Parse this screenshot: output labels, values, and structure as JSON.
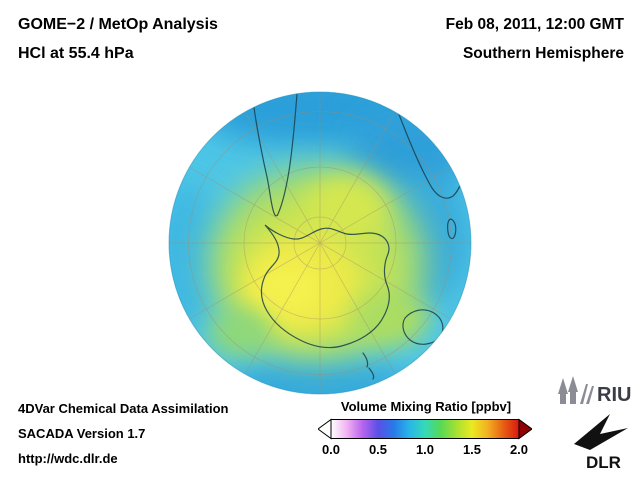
{
  "header": {
    "instrument": "GOME−2 / MetOp Analysis",
    "species_level": "HCl at 55.4 hPa",
    "datetime": "Feb 08, 2011, 12:00 GMT",
    "hemisphere": "Southern Hemisphere"
  },
  "map": {
    "colors": {
      "ocean": "#4fc7e6",
      "rim_blue": "#2b9fd9",
      "field_green": "#9cd977",
      "field_yellow": "#f4f04e",
      "coastline": "#1c3f4a",
      "graticule": "#a38c6a"
    }
  },
  "colorbar": {
    "title": "Volume Mixing Ratio [ppbv]",
    "ticks": [
      "0.0",
      "0.5",
      "1.0",
      "1.5",
      "2.0"
    ],
    "gradient": [
      "#ffffff",
      "#f2b4f2",
      "#b864ee",
      "#5b50e6",
      "#2979e8",
      "#29b5e8",
      "#35d9b8",
      "#55d955",
      "#a6e032",
      "#eaea22",
      "#f2b022",
      "#e85f12",
      "#d61a10"
    ],
    "left_arrow_color": "#ffffff",
    "right_arrow_color": "#8f0000"
  },
  "footer": {
    "line1": "4DVar Chemical Data Assimilation",
    "line2": "SACADA Version 1.7",
    "line3": "http://wdc.dlr.de"
  },
  "logos": {
    "riu": "RIU",
    "dlr": "DLR"
  }
}
